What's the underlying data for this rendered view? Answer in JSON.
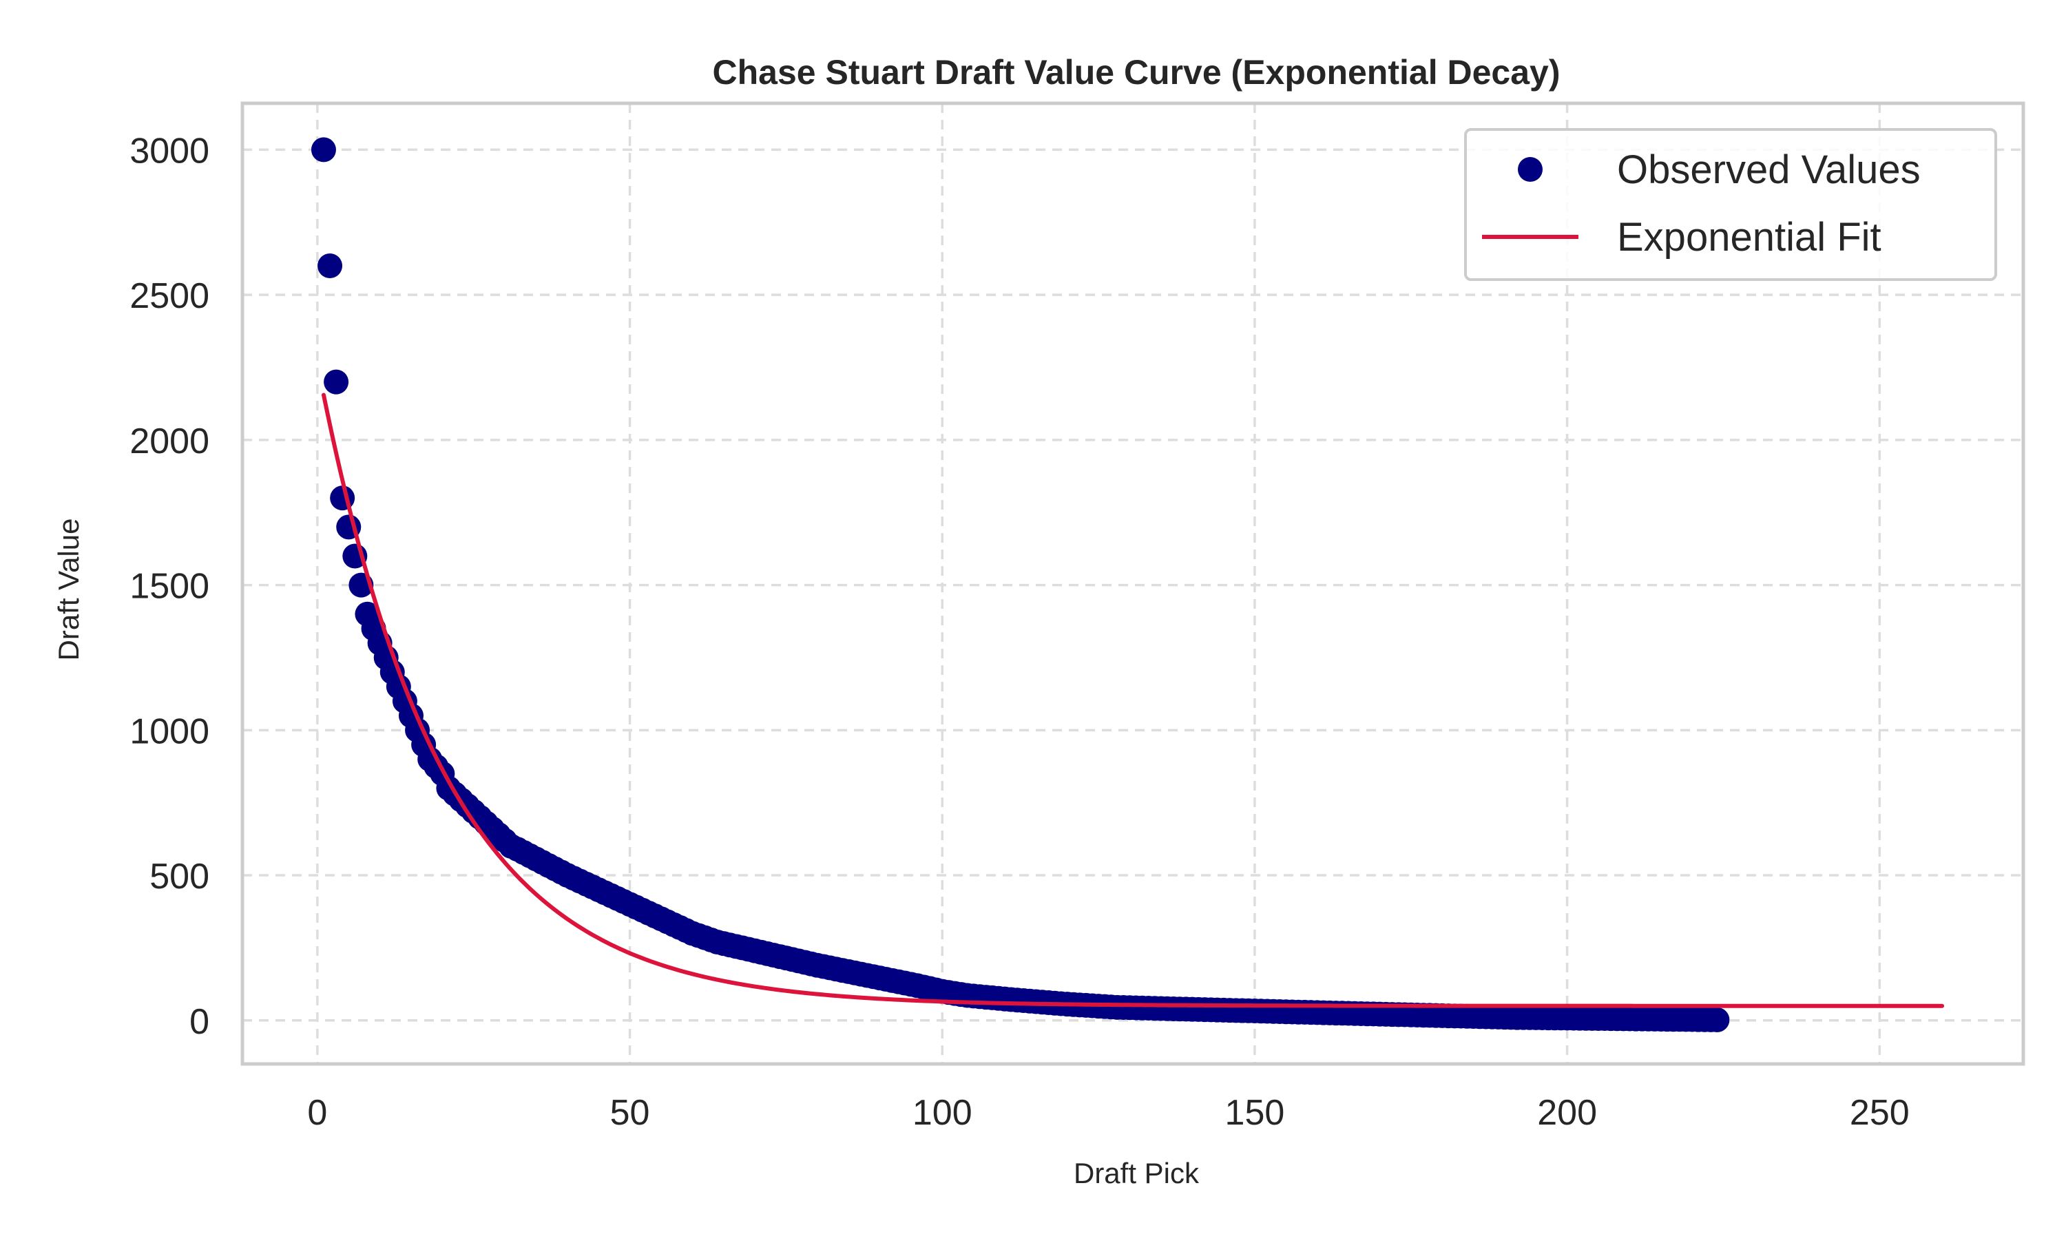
{
  "chart_data": {
    "type": "scatter",
    "title": "Chase Stuart Draft Value Curve (Exponential Decay)",
    "xlabel": "Draft Pick",
    "ylabel": "Draft Value",
    "xlim": [
      -12,
      273
    ],
    "ylim": [
      -150,
      3160
    ],
    "x_ticks": [
      0,
      50,
      100,
      150,
      200,
      250
    ],
    "y_ticks": [
      0,
      500,
      1000,
      1500,
      2000,
      2500,
      3000
    ],
    "grid": true,
    "legend_position": "top-right",
    "legend": [
      {
        "label": "Observed Values",
        "kind": "marker"
      },
      {
        "label": "Exponential Fit",
        "kind": "line"
      }
    ],
    "colors": {
      "observed": "#000080",
      "fit": "#DC143C",
      "grid": "#dddddd",
      "frame": "#cccccc"
    },
    "observed": {
      "name": "Observed Values",
      "x": [
        1,
        2,
        3,
        4,
        5,
        6,
        7,
        8,
        9,
        10,
        11,
        12,
        13,
        14,
        15,
        16,
        17,
        18,
        19,
        20,
        21,
        22,
        23,
        24,
        25,
        26,
        27,
        28,
        29,
        30,
        31,
        32,
        40,
        50,
        60,
        64,
        80,
        96,
        100,
        104,
        112,
        120,
        128,
        160,
        192,
        224
      ],
      "y": [
        3000,
        2600,
        2200,
        1800,
        1700,
        1600,
        1500,
        1400,
        1350,
        1300,
        1250,
        1200,
        1150,
        1100,
        1050,
        1000,
        950,
        900,
        875,
        850,
        800,
        780,
        760,
        740,
        720,
        700,
        680,
        660,
        640,
        620,
        600,
        590,
        500,
        400,
        300,
        270,
        190,
        120,
        100,
        86,
        70,
        56,
        45,
        27,
        10,
        2
      ],
      "fill_step": 1
    },
    "fit": {
      "name": "Exponential Fit",
      "model": "a*exp(-b*x)+c",
      "a": 2213,
      "b": 0.05,
      "c": 50,
      "x_range": [
        1,
        260
      ]
    }
  }
}
